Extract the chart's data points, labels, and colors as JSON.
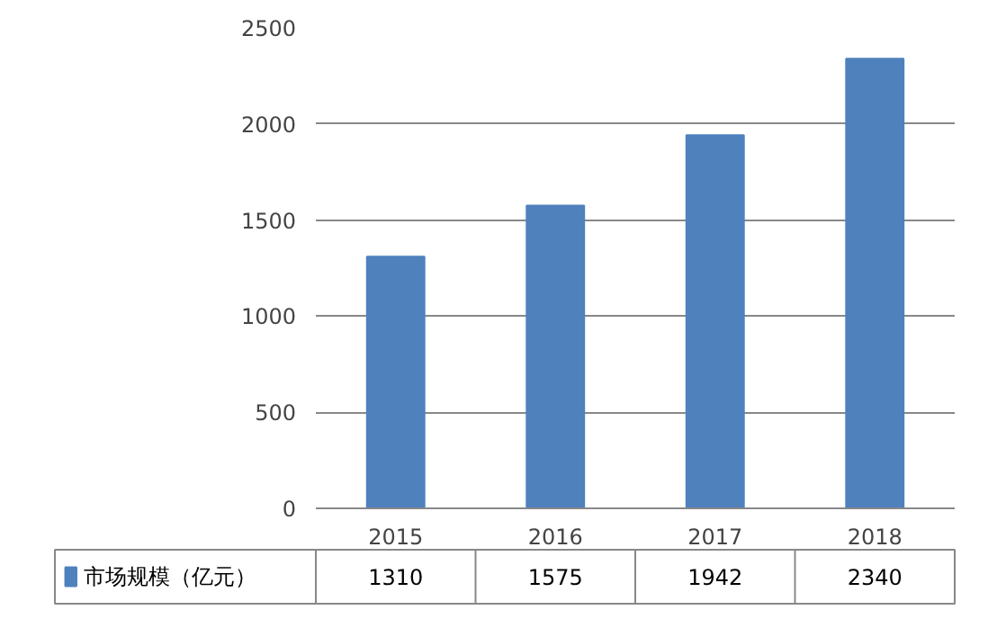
{
  "chart_data": {
    "type": "bar",
    "categories": [
      "2015",
      "2016",
      "2017",
      "2018"
    ],
    "series": [
      {
        "name": "市场规模（亿元）",
        "color": "#4f81bd",
        "values": [
          1310,
          1575,
          1942,
          2340
        ]
      }
    ],
    "ylim": [
      0,
      2500
    ],
    "yticks": [
      0,
      500,
      1000,
      1500,
      2000,
      2500
    ],
    "grid": "y",
    "legend": "bottom",
    "data_labels": true
  }
}
